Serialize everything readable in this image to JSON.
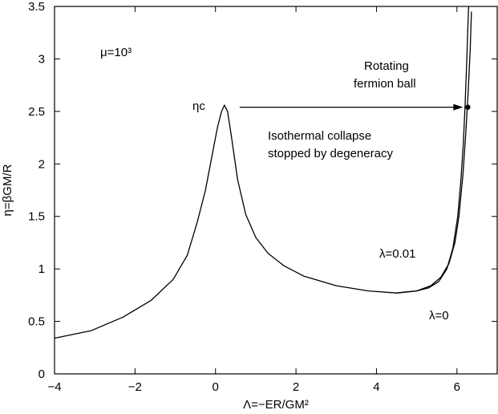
{
  "chart_data": {
    "type": "line",
    "xlabel": "Λ=−ER/GM²",
    "ylabel": "η=βGM/R",
    "xlim": [
      -4,
      7
    ],
    "ylim": [
      0,
      3.5
    ],
    "x_ticks": [
      -4,
      -2,
      0,
      2,
      4,
      6
    ],
    "x_tick_labels": [
      "−4",
      "−2",
      "0",
      "2",
      "4",
      "6"
    ],
    "y_ticks": [
      0,
      0.5,
      1,
      1.5,
      2,
      2.5,
      3,
      3.5
    ],
    "y_tick_labels": [
      "0",
      "0.5",
      "1",
      "1.5",
      "2",
      "2.5",
      "3",
      "3.5"
    ],
    "grid": false,
    "colors": {
      "line": "#000000",
      "background": "#ffffff"
    },
    "series": [
      {
        "name": "λ=0.01",
        "points": [
          [
            -4.0,
            0.34
          ],
          [
            -3.1,
            0.41
          ],
          [
            -2.3,
            0.54
          ],
          [
            -1.6,
            0.7
          ],
          [
            -1.05,
            0.9
          ],
          [
            -0.7,
            1.13
          ],
          [
            -0.45,
            1.45
          ],
          [
            -0.25,
            1.75
          ],
          [
            -0.1,
            2.05
          ],
          [
            0.05,
            2.35
          ],
          [
            0.15,
            2.5
          ],
          [
            0.22,
            2.56
          ],
          [
            0.3,
            2.5
          ],
          [
            0.4,
            2.25
          ],
          [
            0.55,
            1.85
          ],
          [
            0.75,
            1.52
          ],
          [
            1.0,
            1.3
          ],
          [
            1.3,
            1.15
          ],
          [
            1.7,
            1.03
          ],
          [
            2.2,
            0.93
          ],
          [
            3.0,
            0.84
          ],
          [
            3.8,
            0.79
          ],
          [
            4.5,
            0.77
          ],
          [
            5.0,
            0.79
          ],
          [
            5.35,
            0.84
          ],
          [
            5.6,
            0.92
          ],
          [
            5.8,
            1.05
          ],
          [
            5.95,
            1.25
          ],
          [
            6.05,
            1.5
          ],
          [
            6.15,
            1.9
          ],
          [
            6.22,
            2.3
          ],
          [
            6.28,
            2.7
          ],
          [
            6.33,
            3.1
          ],
          [
            6.36,
            3.45
          ]
        ]
      },
      {
        "name": "λ=0",
        "points": [
          [
            4.5,
            0.77
          ],
          [
            5.0,
            0.79
          ],
          [
            5.3,
            0.82
          ],
          [
            5.55,
            0.88
          ],
          [
            5.75,
            1.0
          ],
          [
            5.9,
            1.2
          ],
          [
            6.02,
            1.5
          ],
          [
            6.1,
            1.85
          ],
          [
            6.16,
            2.2
          ],
          [
            6.2,
            2.55
          ],
          [
            6.24,
            2.95
          ],
          [
            6.27,
            3.3
          ],
          [
            6.29,
            3.5
          ]
        ]
      }
    ],
    "marker": {
      "x": 6.27,
      "y": 2.54
    },
    "arrow": {
      "from": [
        0.6,
        2.54
      ],
      "to": [
        6.15,
        2.54
      ]
    },
    "annotations": {
      "mu": "μ=10³",
      "eta_c": "ηc",
      "rotating_1": "Rotating",
      "rotating_2": "fermion ball",
      "isothermal_1": "Isothermal collapse",
      "isothermal_2": "stopped by degeneracy",
      "lambda_001": "λ=0.01",
      "lambda_0": "λ=0"
    }
  }
}
